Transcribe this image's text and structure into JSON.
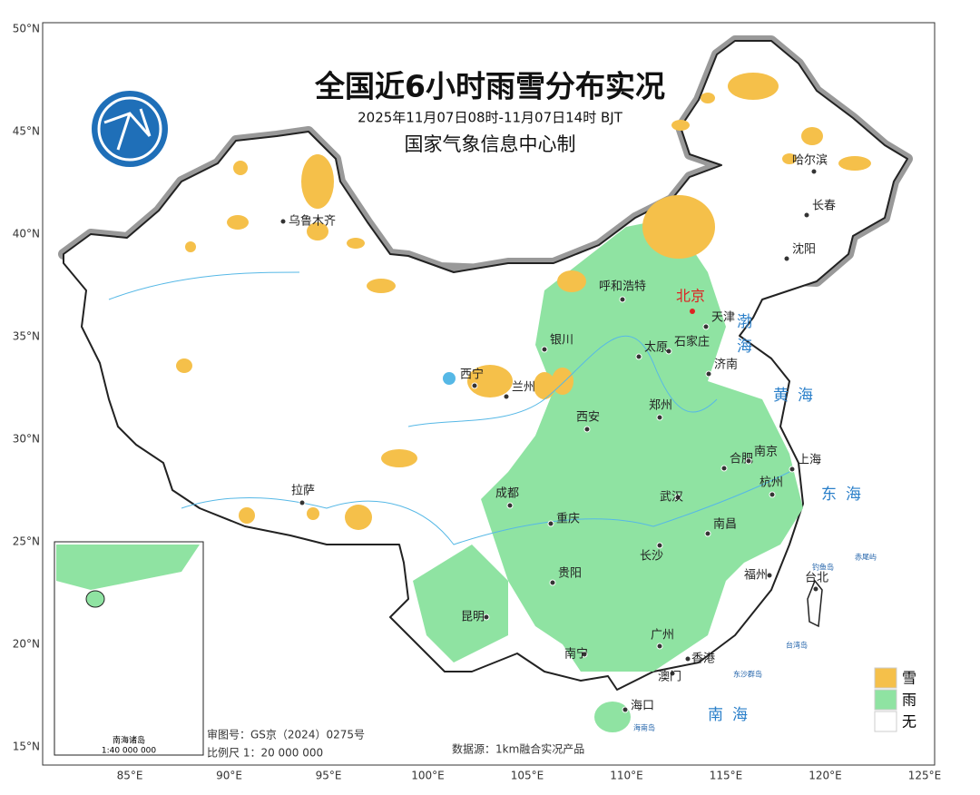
{
  "title": "全国近6小时雨雪分布实况",
  "subtitle": "2025年11月07日08时-11月07日14时 BJT",
  "producer": "国家气象信息中心制",
  "lat_labels": [
    "50°N",
    "45°N",
    "40°N",
    "35°N",
    "30°N",
    "25°N",
    "20°N",
    "15°N"
  ],
  "lon_labels": [
    "85°E",
    "90°E",
    "95°E",
    "100°E",
    "105°E",
    "110°E",
    "115°E",
    "120°E",
    "125°E"
  ],
  "capital": "北京",
  "cities": [
    "乌鲁木齐",
    "呼和浩特",
    "天津",
    "石家庄",
    "太原",
    "银川",
    "济南",
    "西宁",
    "兰州",
    "西安",
    "郑州",
    "合肥",
    "南京",
    "上海",
    "拉萨",
    "成都",
    "武汉",
    "杭州",
    "重庆",
    "南昌",
    "长沙",
    "贵阳",
    "福州",
    "台北",
    "昆明",
    "广州",
    "南宁",
    "香港",
    "澳门",
    "海口",
    "哈尔滨",
    "长春",
    "沈阳"
  ],
  "seas": [
    "渤海",
    "黄海",
    "东海",
    "南海"
  ],
  "islands": [
    "东沙群岛",
    "台湾岛",
    "钓鱼岛",
    "赤尾屿",
    "海南岛"
  ],
  "legend": [
    {
      "label": "雪",
      "color": "#f5c04a"
    },
    {
      "label": "雨",
      "color": "#8fe3a2"
    },
    {
      "label": "无",
      "color": "#ffffff"
    }
  ],
  "inset": {
    "title": "南海诸岛",
    "scale": "1:40 000 000"
  },
  "review_no": "审图号：GS京（2024）0275号",
  "scale": "比例尺 1：20 000 000",
  "source": "数据源：1km融合实况产品"
}
